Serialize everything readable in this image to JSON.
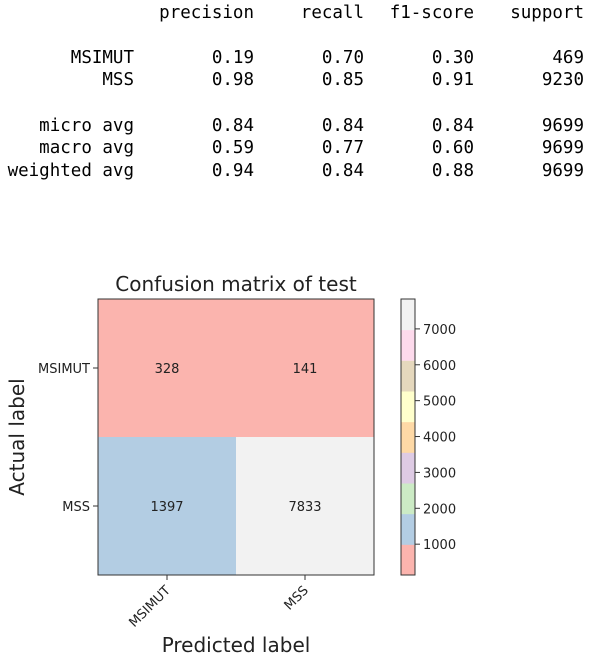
{
  "report": {
    "headers": [
      "precision",
      "recall",
      "f1-score",
      "support"
    ],
    "class_rows": [
      {
        "label": "MSIMUT",
        "precision": "0.19",
        "recall": "0.70",
        "f1": "0.30",
        "support": "469"
      },
      {
        "label": "MSS",
        "precision": "0.98",
        "recall": "0.85",
        "f1": "0.91",
        "support": "9230"
      }
    ],
    "avg_rows": [
      {
        "label": "micro avg",
        "precision": "0.84",
        "recall": "0.84",
        "f1": "0.84",
        "support": "9699"
      },
      {
        "label": "macro avg",
        "precision": "0.59",
        "recall": "0.77",
        "f1": "0.60",
        "support": "9699"
      },
      {
        "label": "weighted avg",
        "precision": "0.94",
        "recall": "0.84",
        "f1": "0.88",
        "support": "9699"
      }
    ]
  },
  "chart_data": {
    "type": "heatmap",
    "title": "Confusion matrix of test",
    "xlabel": "Predicted label",
    "ylabel": "Actual label",
    "x_categories": [
      "MSIMUT",
      "MSS"
    ],
    "y_categories": [
      "MSIMUT",
      "MSS"
    ],
    "values": [
      [
        328,
        141
      ],
      [
        1397,
        7833
      ]
    ],
    "colormap": "Pastel1",
    "colorbar": {
      "range": [
        141,
        7833
      ],
      "ticks": [
        1000,
        2000,
        3000,
        4000,
        5000,
        6000,
        7000
      ],
      "colors": [
        "#fbb4ae",
        "#b3cde3",
        "#ccebc5",
        "#decbe4",
        "#fed9a6",
        "#ffffcc",
        "#e5d8bd",
        "#fddaec",
        "#f2f2f2"
      ]
    }
  }
}
